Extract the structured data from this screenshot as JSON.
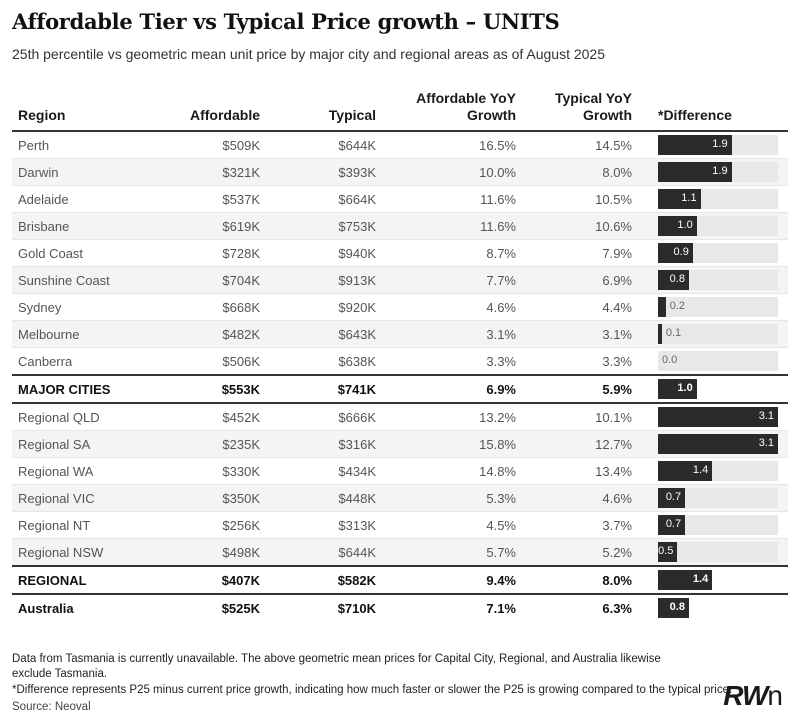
{
  "title": "Affordable Tier vs Typical Price growth – UNITS",
  "subtitle": "25th percentile vs geometric mean unit price by major city and regional areas as of August 2025",
  "headers": [
    "Region",
    "Affordable",
    "Typical",
    "Affordable YoY\nGrowth",
    "Typical YoY\nGrowth",
    "*Difference"
  ],
  "colors": {
    "bar": "#2b2b2b",
    "bar_track": "#e8e8e8",
    "stripe": "#f4f4f4"
  },
  "chart_data": {
    "type": "table",
    "title": "Affordable Tier vs Typical Price growth – UNITS",
    "subtitle": "25th percentile vs geometric mean unit price by major city and regional areas as of August 2025",
    "difference_scale_max": 3.1,
    "rows": [
      {
        "region": "Perth",
        "affordable": "$509K",
        "typical": "$644K",
        "aff_growth": "16.5%",
        "typ_growth": "14.5%",
        "diff": 1.9,
        "diff_label": "1.9",
        "summary": false
      },
      {
        "region": "Darwin",
        "affordable": "$321K",
        "typical": "$393K",
        "aff_growth": "10.0%",
        "typ_growth": "8.0%",
        "diff": 1.9,
        "diff_label": "1.9",
        "summary": false
      },
      {
        "region": "Adelaide",
        "affordable": "$537K",
        "typical": "$664K",
        "aff_growth": "11.6%",
        "typ_growth": "10.5%",
        "diff": 1.1,
        "diff_label": "1.1",
        "summary": false
      },
      {
        "region": "Brisbane",
        "affordable": "$619K",
        "typical": "$753K",
        "aff_growth": "11.6%",
        "typ_growth": "10.6%",
        "diff": 1.0,
        "diff_label": "1.0",
        "summary": false
      },
      {
        "region": "Gold Coast",
        "affordable": "$728K",
        "typical": "$940K",
        "aff_growth": "8.7%",
        "typ_growth": "7.9%",
        "diff": 0.9,
        "diff_label": "0.9",
        "summary": false
      },
      {
        "region": "Sunshine Coast",
        "affordable": "$704K",
        "typical": "$913K",
        "aff_growth": "7.7%",
        "typ_growth": "6.9%",
        "diff": 0.8,
        "diff_label": "0.8",
        "summary": false
      },
      {
        "region": "Sydney",
        "affordable": "$668K",
        "typical": "$920K",
        "aff_growth": "4.6%",
        "typ_growth": "4.4%",
        "diff": 0.2,
        "diff_label": "0.2",
        "summary": false
      },
      {
        "region": "Melbourne",
        "affordable": "$482K",
        "typical": "$643K",
        "aff_growth": "3.1%",
        "typ_growth": "3.1%",
        "diff": 0.1,
        "diff_label": "0.1",
        "summary": false
      },
      {
        "region": "Canberra",
        "affordable": "$506K",
        "typical": "$638K",
        "aff_growth": "3.3%",
        "typ_growth": "3.3%",
        "diff": 0.0,
        "diff_label": "0.0",
        "summary": false
      },
      {
        "region": "MAJOR CITIES",
        "affordable": "$553K",
        "typical": "$741K",
        "aff_growth": "6.9%",
        "typ_growth": "5.9%",
        "diff": 1.0,
        "diff_label": "1.0",
        "summary": true
      },
      {
        "region": "Regional QLD",
        "affordable": "$452K",
        "typical": "$666K",
        "aff_growth": "13.2%",
        "typ_growth": "10.1%",
        "diff": 3.1,
        "diff_label": "3.1",
        "summary": false
      },
      {
        "region": "Regional SA",
        "affordable": "$235K",
        "typical": "$316K",
        "aff_growth": "15.8%",
        "typ_growth": "12.7%",
        "diff": 3.1,
        "diff_label": "3.1",
        "summary": false
      },
      {
        "region": "Regional WA",
        "affordable": "$330K",
        "typical": "$434K",
        "aff_growth": "14.8%",
        "typ_growth": "13.4%",
        "diff": 1.4,
        "diff_label": "1.4",
        "summary": false
      },
      {
        "region": "Regional VIC",
        "affordable": "$350K",
        "typical": "$448K",
        "aff_growth": "5.3%",
        "typ_growth": "4.6%",
        "diff": 0.7,
        "diff_label": "0.7",
        "summary": false
      },
      {
        "region": "Regional NT",
        "affordable": "$256K",
        "typical": "$313K",
        "aff_growth": "4.5%",
        "typ_growth": "3.7%",
        "diff": 0.7,
        "diff_label": "0.7",
        "summary": false
      },
      {
        "region": "Regional NSW",
        "affordable": "$498K",
        "typical": "$644K",
        "aff_growth": "5.7%",
        "typ_growth": "5.2%",
        "diff": 0.5,
        "diff_label": "0.5",
        "summary": false
      },
      {
        "region": "REGIONAL",
        "affordable": "$407K",
        "typical": "$582K",
        "aff_growth": "9.4%",
        "typ_growth": "8.0%",
        "diff": 1.4,
        "diff_label": "1.4",
        "summary": true
      },
      {
        "region": "Australia",
        "affordable": "$525K",
        "typical": "$710K",
        "aff_growth": "7.1%",
        "typ_growth": "6.3%",
        "diff": 0.8,
        "diff_label": "0.8",
        "summary": true
      }
    ]
  },
  "footnotes": {
    "note1": "Data from Tasmania is currently unavailable. The above geometric mean prices for Capital City, Regional, and Australia likewise exclude Tasmania.",
    "note2": "*Difference represents P25 minus current price growth, indicating how much faster or slower the P25 is growing compared to the typical price.",
    "source": "Source: Neoval"
  },
  "logo_text": "RWn"
}
